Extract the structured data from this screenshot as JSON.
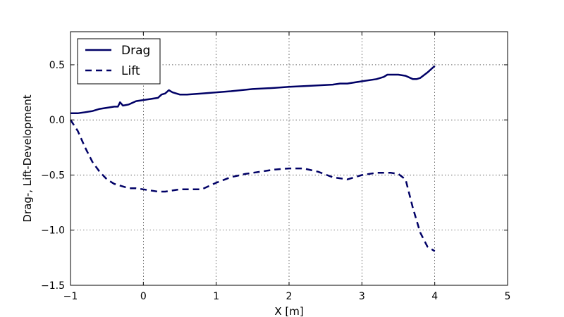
{
  "chart_data": {
    "type": "line",
    "title": "",
    "xlabel": "X [m]",
    "ylabel": "Drag-, Lift-Development",
    "xlim": [
      -1,
      5
    ],
    "ylim": [
      -1.5,
      0.8
    ],
    "xticks": [
      -1,
      0,
      1,
      2,
      3,
      4,
      5
    ],
    "xtick_labels": [
      "−1",
      "0",
      "1",
      "2",
      "3",
      "4",
      "5"
    ],
    "yticks": [
      -1.5,
      -1.0,
      -0.5,
      0.0,
      0.5
    ],
    "ytick_labels": [
      "−1.5",
      "−1.0",
      "−0.5",
      "0.0",
      "0.5"
    ],
    "grid": true,
    "legend_position": "top-left",
    "series": [
      {
        "name": "Drag",
        "style": "solid",
        "color": "#000066",
        "x": [
          -1.0,
          -0.9,
          -0.8,
          -0.7,
          -0.6,
          -0.5,
          -0.4,
          -0.35,
          -0.32,
          -0.28,
          -0.2,
          -0.1,
          0.0,
          0.1,
          0.2,
          0.25,
          0.3,
          0.35,
          0.4,
          0.5,
          0.6,
          0.8,
          1.0,
          1.2,
          1.5,
          1.8,
          2.0,
          2.3,
          2.6,
          2.7,
          2.8,
          3.0,
          3.2,
          3.3,
          3.35,
          3.4,
          3.5,
          3.6,
          3.7,
          3.75,
          3.8,
          3.9,
          4.0
        ],
        "y": [
          0.06,
          0.06,
          0.07,
          0.08,
          0.1,
          0.11,
          0.12,
          0.12,
          0.16,
          0.13,
          0.14,
          0.17,
          0.18,
          0.19,
          0.2,
          0.23,
          0.24,
          0.27,
          0.25,
          0.23,
          0.23,
          0.24,
          0.25,
          0.26,
          0.28,
          0.29,
          0.3,
          0.31,
          0.32,
          0.33,
          0.33,
          0.35,
          0.37,
          0.39,
          0.41,
          0.41,
          0.41,
          0.4,
          0.37,
          0.37,
          0.38,
          0.43,
          0.49
        ]
      },
      {
        "name": "Lift",
        "style": "dashed",
        "color": "#000066",
        "x": [
          -1.0,
          -0.9,
          -0.8,
          -0.7,
          -0.6,
          -0.5,
          -0.4,
          -0.3,
          -0.2,
          -0.1,
          0.0,
          0.1,
          0.2,
          0.3,
          0.4,
          0.5,
          0.6,
          0.7,
          0.8,
          1.0,
          1.2,
          1.4,
          1.6,
          1.8,
          2.0,
          2.2,
          2.4,
          2.6,
          2.8,
          3.0,
          3.2,
          3.4,
          3.5,
          3.6,
          3.7,
          3.8,
          3.9,
          4.0
        ],
        "y": [
          0.0,
          -0.1,
          -0.25,
          -0.38,
          -0.47,
          -0.54,
          -0.58,
          -0.6,
          -0.62,
          -0.62,
          -0.63,
          -0.64,
          -0.65,
          -0.65,
          -0.64,
          -0.63,
          -0.63,
          -0.63,
          -0.63,
          -0.57,
          -0.52,
          -0.49,
          -0.47,
          -0.45,
          -0.44,
          -0.44,
          -0.47,
          -0.52,
          -0.54,
          -0.5,
          -0.48,
          -0.48,
          -0.49,
          -0.54,
          -0.8,
          -1.02,
          -1.15,
          -1.19
        ]
      }
    ]
  }
}
